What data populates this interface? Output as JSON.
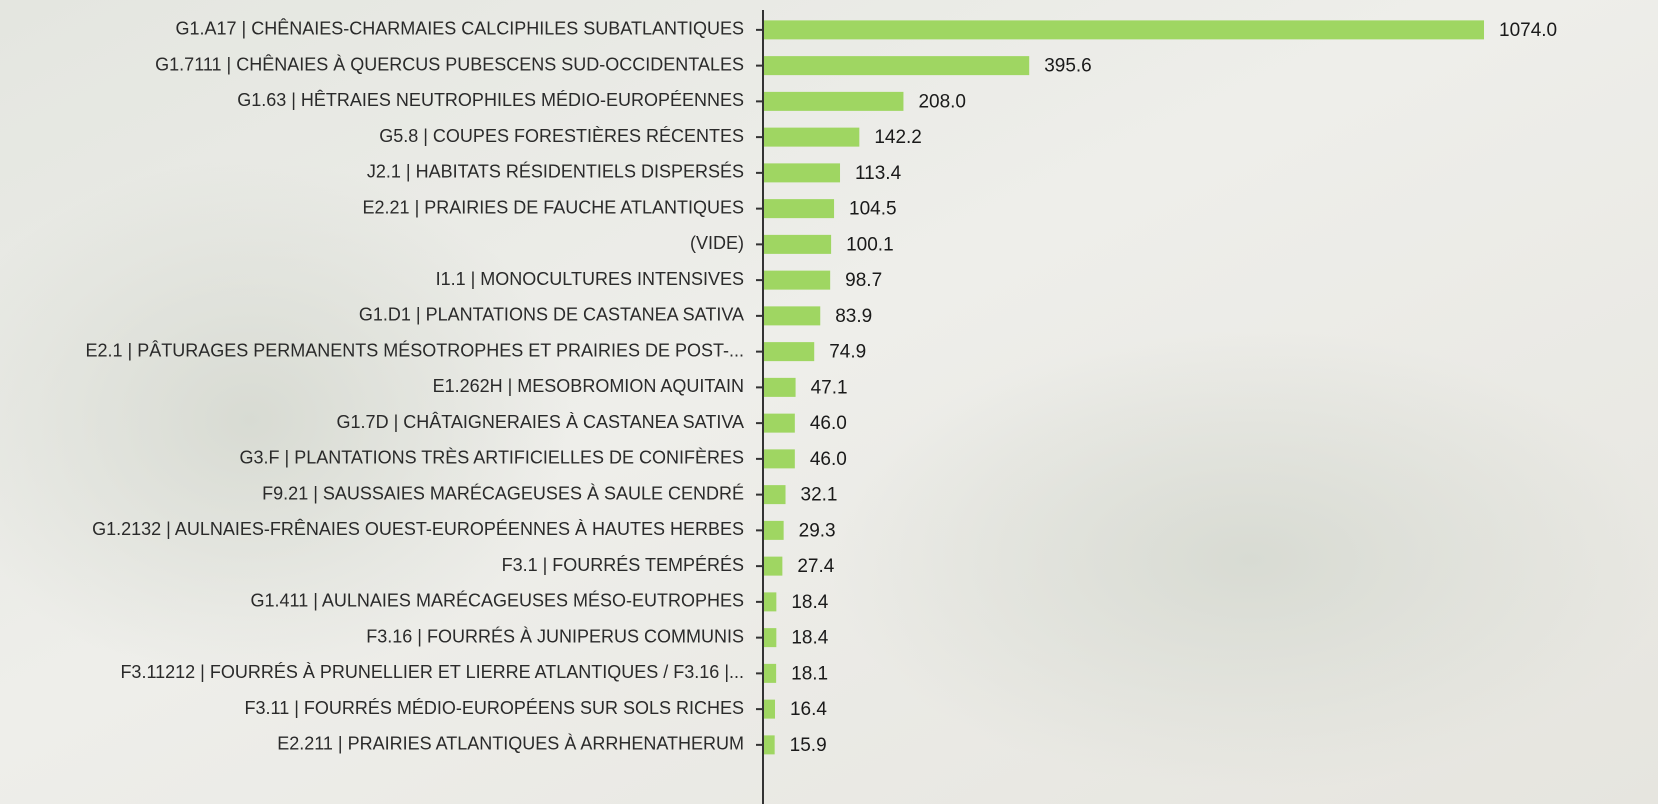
{
  "chart_data": {
    "type": "bar",
    "orientation": "horizontal",
    "color": "#9fd662",
    "categories": [
      "G1.A17 | CHÊNAIES-CHARMAIES CALCIPHILES SUBATLANTIQUES",
      "G1.7111 | CHÊNAIES À QUERCUS PUBESCENS SUD-OCCIDENTALES",
      "G1.63 | HÊTRAIES NEUTROPHILES MÉDIO-EUROPÉENNES",
      "G5.8 | COUPES FORESTIÈRES RÉCENTES",
      "J2.1 | HABITATS RÉSIDENTIELS DISPERSÉS",
      "E2.21 | PRAIRIES DE FAUCHE ATLANTIQUES",
      "(VIDE)",
      "I1.1 | MONOCULTURES INTENSIVES",
      "G1.D1 | PLANTATIONS DE CASTANEA SATIVA",
      "E2.1 | PÂTURAGES PERMANENTS MÉSOTROPHES ET PRAIRIES DE POST-...",
      "E1.262H | MESOBROMION AQUITAIN",
      "G1.7D | CHÂTAIGNERAIES À CASTANEA SATIVA",
      "G3.F | PLANTATIONS TRÈS ARTIFICIELLES DE CONIFÈRES",
      "F9.21 | SAUSSAIES MARÉCAGEUSES À SAULE CENDRÉ",
      "G1.2132 | AULNAIES-FRÊNAIES OUEST-EUROPÉENNES À HAUTES HERBES",
      "F3.1 | FOURRÉS TEMPÉRÉS",
      "G1.411 | AULNAIES MARÉCAGEUSES MÉSO-EUTROPHES",
      "F3.16 | FOURRÉS À JUNIPERUS COMMUNIS",
      "F3.11212 | FOURRÉS À PRUNELLIER ET LIERRE ATLANTIQUES / F3.16 |...",
      "F3.11 | FOURRÉS MÉDIO-EUROPÉENS SUR SOLS RICHES",
      "E2.211 | PRAIRIES ATLANTIQUES À ARRHENATHERUM"
    ],
    "values": [
      1074.0,
      395.6,
      208.0,
      142.2,
      113.4,
      104.5,
      100.1,
      98.7,
      83.9,
      74.9,
      47.1,
      46.0,
      46.0,
      32.1,
      29.3,
      27.4,
      18.4,
      18.4,
      18.1,
      16.4,
      15.9
    ],
    "value_labels": [
      "1074.0",
      "395.6",
      "208.0",
      "142.2",
      "113.4",
      "104.5",
      "100.1",
      "98.7",
      "83.9",
      "74.9",
      "47.1",
      "46.0",
      "46.0",
      "32.1",
      "29.3",
      "27.4",
      "18.4",
      "18.4",
      "18.1",
      "16.4",
      "15.9"
    ]
  }
}
